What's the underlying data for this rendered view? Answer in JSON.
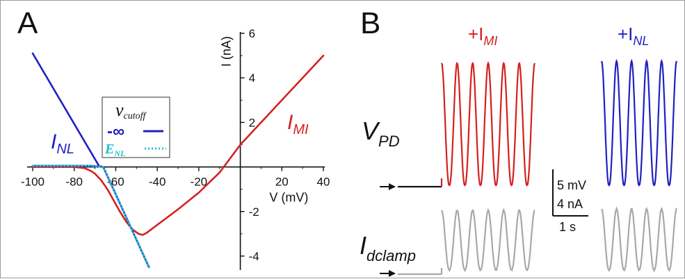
{
  "panel_a_label": "A",
  "panel_b_label": "B",
  "chart_data": [
    {
      "type": "line",
      "panel": "A",
      "xlabel": "V (mV)",
      "ylabel": "I (nA)",
      "xlim": [
        -100,
        40
      ],
      "ylim": [
        -4.5,
        6
      ],
      "xticks": [
        -100,
        -80,
        -60,
        -40,
        -20,
        20,
        40
      ],
      "yticks": [
        -4,
        -2,
        2,
        4,
        6
      ],
      "grid": false,
      "series": [
        {
          "name": "I_MI",
          "color": "#d42020",
          "x": [
            -100,
            -80,
            -75,
            -72,
            -70,
            -67,
            -64,
            -61,
            -58,
            -55,
            -52,
            -49,
            -47,
            -45,
            -40,
            -30,
            -20,
            -10,
            0,
            10,
            20,
            30,
            40
          ],
          "y": [
            0,
            0,
            -0.05,
            -0.18,
            -0.3,
            -0.6,
            -1.0,
            -1.5,
            -2.0,
            -2.45,
            -2.8,
            -3.0,
            -3.05,
            -2.95,
            -2.6,
            -1.9,
            -1.15,
            -0.25,
            1.0,
            2.0,
            3.0,
            4.0,
            5.0
          ]
        },
        {
          "name": "I_NL",
          "color": "#2020c0",
          "x": [
            -100,
            -68,
            -66
          ],
          "y": [
            5.1,
            0.04,
            0.0
          ]
        },
        {
          "name": "I_NL cutoff -inf (solid)",
          "color": "#2020c0",
          "x": [
            -100,
            -72,
            -68,
            -66,
            -44
          ],
          "y": [
            0.05,
            0.05,
            0.02,
            0.0,
            -4.5
          ]
        },
        {
          "name": "I_NL cutoff E_NL (dotted)",
          "color": "#20c0d0",
          "x": [
            -100,
            -72,
            -68,
            -66,
            -44
          ],
          "y": [
            0.05,
            0.05,
            0.02,
            0.0,
            -4.5
          ]
        }
      ],
      "annotations": {
        "i_nl_label": "I",
        "i_nl_sub": "NL",
        "i_mi_label": "I",
        "i_mi_sub": "MI"
      },
      "legend": {
        "title_main": "v",
        "title_sub": "cutoff",
        "row1_label": "-∞",
        "row2_label": "E",
        "row2_sub": "NL",
        "position": "center-left"
      }
    },
    {
      "type": "line",
      "panel": "B",
      "labels": {
        "plus_mi": "+I",
        "plus_mi_sub": "MI",
        "plus_nl": "+I",
        "plus_nl_sub": "NL",
        "v_pd": "V",
        "v_pd_sub": "PD",
        "i_dclamp": "I",
        "i_dclamp_sub": "dclamp"
      },
      "scale_bar": {
        "voltage": "5 mV",
        "current": "4 nA",
        "time": "1 s"
      },
      "colors": {
        "mi": "#d42020",
        "nl": "#2020c0",
        "baseline": "#111111",
        "current": "#a8a8a8"
      },
      "oscillation_cycles": 6,
      "nl_oscillation_cycles": 5
    }
  ]
}
